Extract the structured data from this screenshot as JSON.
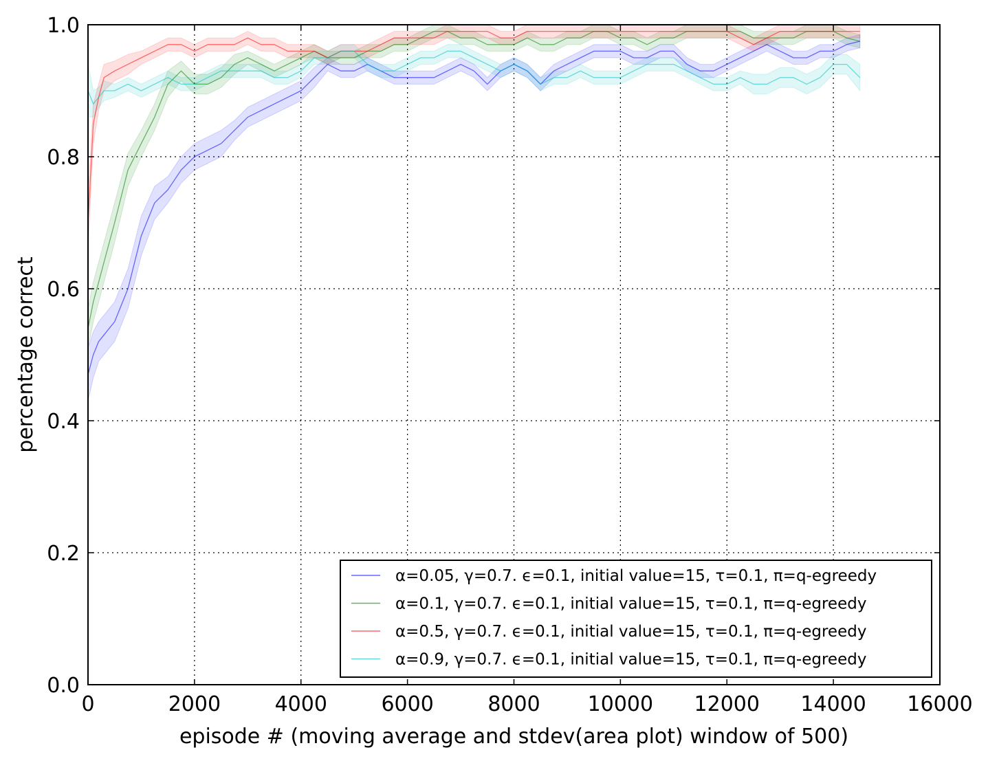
{
  "chart_data": {
    "type": "line",
    "xlabel": "episode # (moving average and stdev(area plot) window of 500)",
    "ylabel": "percentage correct",
    "xlim": [
      0,
      16000
    ],
    "ylim": [
      0.0,
      1.0
    ],
    "x_ticks": [
      "0",
      "2000",
      "4000",
      "6000",
      "8000",
      "10000",
      "12000",
      "14000",
      "16000"
    ],
    "y_ticks": [
      "0.0",
      "0.2",
      "0.4",
      "0.6",
      "0.8",
      "1.0"
    ],
    "grid": true,
    "legend_position": "lower-right",
    "x": [
      0,
      100,
      200,
      300,
      500,
      750,
      1000,
      1250,
      1500,
      1750,
      2000,
      2250,
      2500,
      2750,
      3000,
      3250,
      3500,
      3750,
      4000,
      4250,
      4500,
      4750,
      5000,
      5250,
      5500,
      5750,
      6000,
      6250,
      6500,
      6750,
      7000,
      7250,
      7500,
      7750,
      8000,
      8250,
      8500,
      8750,
      9000,
      9250,
      9500,
      9750,
      10000,
      10250,
      10500,
      10750,
      11000,
      11250,
      11500,
      11750,
      12000,
      12250,
      12500,
      12750,
      13000,
      13250,
      13500,
      13750,
      14000,
      14250,
      14500
    ],
    "series": [
      {
        "name": "α=0.05, γ=0.7. ϵ=0.1, initial value=15, τ=0.1, π=q-egreedy",
        "color": "#0000ff",
        "values": [
          0.47,
          0.5,
          0.52,
          0.53,
          0.55,
          0.6,
          0.68,
          0.73,
          0.75,
          0.78,
          0.8,
          0.81,
          0.82,
          0.84,
          0.86,
          0.87,
          0.88,
          0.89,
          0.9,
          0.92,
          0.94,
          0.93,
          0.93,
          0.94,
          0.93,
          0.92,
          0.92,
          0.92,
          0.92,
          0.93,
          0.94,
          0.93,
          0.91,
          0.93,
          0.94,
          0.93,
          0.91,
          0.93,
          0.94,
          0.95,
          0.96,
          0.96,
          0.96,
          0.95,
          0.95,
          0.96,
          0.96,
          0.94,
          0.93,
          0.93,
          0.94,
          0.95,
          0.96,
          0.97,
          0.96,
          0.95,
          0.95,
          0.96,
          0.96,
          0.97,
          0.975
        ],
        "std": [
          0.04,
          0.035,
          0.03,
          0.03,
          0.03,
          0.03,
          0.03,
          0.025,
          0.02,
          0.02,
          0.02,
          0.02,
          0.02,
          0.015,
          0.015,
          0.015,
          0.015,
          0.015,
          0.015,
          0.015,
          0.01,
          0.01,
          0.01,
          0.01,
          0.01,
          0.01,
          0.01,
          0.01,
          0.01,
          0.01,
          0.01,
          0.01,
          0.01,
          0.01,
          0.01,
          0.01,
          0.01,
          0.01,
          0.01,
          0.01,
          0.01,
          0.01,
          0.01,
          0.01,
          0.01,
          0.01,
          0.01,
          0.01,
          0.01,
          0.01,
          0.01,
          0.01,
          0.01,
          0.01,
          0.01,
          0.01,
          0.01,
          0.01,
          0.01,
          0.01,
          0.01
        ]
      },
      {
        "name": "α=0.1, γ=0.7. ϵ=0.1, initial value=15, τ=0.1, π=q-egreedy",
        "color": "#008000",
        "values": [
          0.54,
          0.58,
          0.61,
          0.64,
          0.7,
          0.78,
          0.82,
          0.86,
          0.91,
          0.93,
          0.91,
          0.91,
          0.92,
          0.94,
          0.95,
          0.94,
          0.93,
          0.94,
          0.95,
          0.96,
          0.95,
          0.95,
          0.95,
          0.96,
          0.96,
          0.97,
          0.97,
          0.98,
          0.99,
          0.99,
          0.98,
          0.98,
          0.97,
          0.97,
          0.97,
          0.98,
          0.97,
          0.97,
          0.98,
          0.98,
          0.99,
          0.99,
          0.98,
          0.98,
          0.97,
          0.98,
          0.98,
          0.99,
          0.99,
          0.99,
          0.99,
          0.99,
          0.98,
          0.98,
          0.98,
          0.98,
          0.99,
          0.99,
          0.99,
          0.98,
          0.975
        ],
        "std": [
          0.03,
          0.03,
          0.03,
          0.03,
          0.03,
          0.025,
          0.02,
          0.02,
          0.02,
          0.015,
          0.015,
          0.015,
          0.015,
          0.015,
          0.01,
          0.01,
          0.01,
          0.01,
          0.01,
          0.01,
          0.01,
          0.01,
          0.01,
          0.01,
          0.01,
          0.01,
          0.01,
          0.01,
          0.01,
          0.01,
          0.01,
          0.01,
          0.01,
          0.01,
          0.01,
          0.01,
          0.01,
          0.01,
          0.01,
          0.01,
          0.01,
          0.01,
          0.01,
          0.01,
          0.01,
          0.01,
          0.01,
          0.01,
          0.01,
          0.01,
          0.01,
          0.01,
          0.01,
          0.01,
          0.01,
          0.01,
          0.01,
          0.01,
          0.01,
          0.01,
          0.01
        ]
      },
      {
        "name": "α=0.5, γ=0.7. ϵ=0.1, initial value=15, τ=0.1, π=q-egreedy",
        "color": "#ff0000",
        "values": [
          0.7,
          0.85,
          0.89,
          0.92,
          0.93,
          0.94,
          0.95,
          0.96,
          0.97,
          0.97,
          0.96,
          0.97,
          0.97,
          0.97,
          0.98,
          0.97,
          0.97,
          0.96,
          0.96,
          0.96,
          0.95,
          0.96,
          0.96,
          0.96,
          0.97,
          0.98,
          0.98,
          0.98,
          0.98,
          0.99,
          0.99,
          0.99,
          0.99,
          0.98,
          0.98,
          0.99,
          0.99,
          0.99,
          0.99,
          0.99,
          0.99,
          0.99,
          0.99,
          0.99,
          0.99,
          0.99,
          0.99,
          0.99,
          0.99,
          0.99,
          0.99,
          0.98,
          0.97,
          0.98,
          0.99,
          0.99,
          0.99,
          0.99,
          0.99,
          0.99,
          0.99
        ],
        "std": [
          0.04,
          0.03,
          0.02,
          0.02,
          0.015,
          0.015,
          0.01,
          0.01,
          0.01,
          0.01,
          0.01,
          0.01,
          0.01,
          0.01,
          0.01,
          0.01,
          0.01,
          0.01,
          0.01,
          0.01,
          0.01,
          0.01,
          0.01,
          0.01,
          0.01,
          0.01,
          0.01,
          0.01,
          0.01,
          0.01,
          0.01,
          0.01,
          0.01,
          0.01,
          0.01,
          0.01,
          0.01,
          0.01,
          0.01,
          0.01,
          0.01,
          0.01,
          0.01,
          0.01,
          0.01,
          0.01,
          0.01,
          0.01,
          0.01,
          0.01,
          0.01,
          0.01,
          0.01,
          0.01,
          0.01,
          0.01,
          0.01,
          0.01,
          0.01,
          0.01,
          0.01
        ]
      },
      {
        "name": "α=0.9, γ=0.7. ϵ=0.1, initial value=15, τ=0.1, π=q-egreedy",
        "color": "#00bfbf",
        "values": [
          0.9,
          0.88,
          0.89,
          0.9,
          0.9,
          0.91,
          0.9,
          0.91,
          0.92,
          0.91,
          0.91,
          0.92,
          0.93,
          0.93,
          0.93,
          0.93,
          0.92,
          0.92,
          0.93,
          0.95,
          0.95,
          0.96,
          0.96,
          0.94,
          0.93,
          0.93,
          0.94,
          0.95,
          0.95,
          0.96,
          0.96,
          0.95,
          0.94,
          0.93,
          0.94,
          0.93,
          0.91,
          0.92,
          0.92,
          0.93,
          0.92,
          0.92,
          0.92,
          0.93,
          0.94,
          0.94,
          0.94,
          0.93,
          0.92,
          0.91,
          0.91,
          0.92,
          0.91,
          0.91,
          0.92,
          0.92,
          0.91,
          0.92,
          0.94,
          0.94,
          0.92
        ],
        "std": [
          0.04,
          0.02,
          0.015,
          0.015,
          0.01,
          0.01,
          0.01,
          0.01,
          0.01,
          0.01,
          0.01,
          0.01,
          0.01,
          0.01,
          0.01,
          0.01,
          0.01,
          0.01,
          0.01,
          0.01,
          0.01,
          0.01,
          0.01,
          0.01,
          0.01,
          0.01,
          0.01,
          0.01,
          0.01,
          0.01,
          0.01,
          0.01,
          0.01,
          0.01,
          0.01,
          0.01,
          0.01,
          0.01,
          0.01,
          0.01,
          0.01,
          0.01,
          0.01,
          0.01,
          0.01,
          0.01,
          0.01,
          0.01,
          0.01,
          0.01,
          0.01,
          0.01,
          0.015,
          0.015,
          0.015,
          0.015,
          0.015,
          0.015,
          0.015,
          0.015,
          0.02
        ]
      }
    ]
  }
}
